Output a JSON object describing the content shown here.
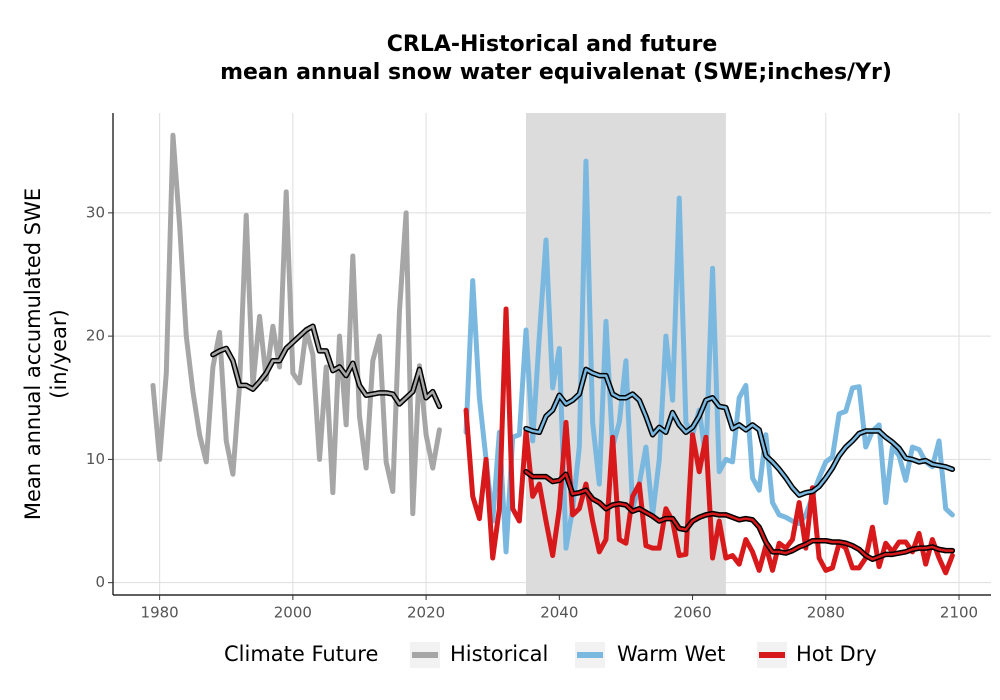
{
  "chart_data": {
    "type": "line",
    "title": [
      "CRLA-Historical and future",
      "mean annual snow water equivalenat (SWE;inches/Yr)"
    ],
    "ylabel": [
      "Mean annual accumulated SWE",
      "(in/year)"
    ],
    "legend_title": "Climate Future",
    "legend": "bottom",
    "grid": true,
    "xlim": [
      1973,
      2104.8
    ],
    "ylim": [
      -1,
      38.1
    ],
    "xticks": [
      1980,
      2000,
      2020,
      2040,
      2060,
      2080,
      2100
    ],
    "yticks": [
      0,
      10,
      20,
      30
    ],
    "shade": [
      2035,
      2065
    ],
    "shade_color": "#dcdcdc",
    "trend_color": "#000000",
    "series": [
      {
        "name": "Historical",
        "color": "#a6a6a6",
        "x": [
          1979,
          1980,
          1981,
          1982,
          1983,
          1984,
          1985,
          1986,
          1987,
          1988,
          1989,
          1990,
          1991,
          1992,
          1993,
          1994,
          1995,
          1996,
          1997,
          1998,
          1999,
          2000,
          2001,
          2002,
          2003,
          2004,
          2005,
          2006,
          2007,
          2008,
          2009,
          2010,
          2011,
          2012,
          2013,
          2014,
          2015,
          2016,
          2017,
          2018,
          2019,
          2020,
          2021,
          2022
        ],
        "values": [
          16,
          10,
          17,
          36.3,
          29,
          20,
          15.5,
          12,
          9.8,
          17.5,
          20.3,
          11.5,
          8.8,
          16,
          29.8,
          16,
          21.6,
          16.5,
          20.8,
          17.5,
          31.7,
          17,
          16.2,
          20.5,
          18.5,
          10,
          17.5,
          7.3,
          20,
          12.8,
          26.5,
          13.5,
          9.3,
          18,
          20,
          9.8,
          7.4,
          22,
          30,
          5.6,
          17.6,
          12,
          9.3,
          12.4
        ],
        "trend": {
          "x": [
            1988,
            1989,
            1990,
            1991,
            1992,
            1993,
            1994,
            1995,
            1996,
            1997,
            1998,
            1999,
            2000,
            2001,
            2002,
            2003,
            2004,
            2005,
            2006,
            2007,
            2008,
            2009,
            2010,
            2011,
            2012,
            2013,
            2014,
            2015,
            2016,
            2017,
            2018,
            2019,
            2020,
            2021,
            2022
          ],
          "values": [
            18.5,
            18.8,
            19,
            18,
            16,
            16,
            15.7,
            16.3,
            17,
            18,
            18,
            19,
            19.5,
            20,
            20.5,
            20.8,
            18.8,
            18.8,
            17.2,
            17.5,
            16.8,
            17.8,
            16,
            15.2,
            15.3,
            15.4,
            15.4,
            15.3,
            14.5,
            15,
            15.5,
            17.3,
            15,
            15.5,
            14.3
          ]
        }
      },
      {
        "name": "Warm Wet",
        "color": "#7ab8e0",
        "x": [
          2026,
          2027,
          2028,
          2029,
          2030,
          2031,
          2032,
          2033,
          2034,
          2035,
          2036,
          2037,
          2038,
          2039,
          2040,
          2041,
          2042,
          2043,
          2044,
          2045,
          2046,
          2047,
          2048,
          2049,
          2050,
          2051,
          2052,
          2053,
          2054,
          2055,
          2056,
          2057,
          2058,
          2059,
          2060,
          2061,
          2062,
          2063,
          2064,
          2065,
          2066,
          2067,
          2068,
          2069,
          2070,
          2071,
          2072,
          2073,
          2074,
          2075,
          2076,
          2077,
          2078,
          2079,
          2080,
          2081,
          2082,
          2083,
          2084,
          2085,
          2086,
          2087,
          2088,
          2089,
          2090,
          2091,
          2092,
          2093,
          2094,
          2095,
          2096,
          2097,
          2098,
          2099
        ],
        "values": [
          12.2,
          24.5,
          15,
          10,
          5,
          12.2,
          2.5,
          11.8,
          12,
          20.5,
          11.5,
          20,
          27.8,
          15.8,
          19,
          2.8,
          6,
          11,
          34.2,
          13,
          8,
          21.2,
          11,
          13,
          18,
          6,
          8,
          11,
          5.5,
          10,
          20,
          14.8,
          31.2,
          13,
          12,
          14,
          10,
          25.5,
          9,
          10,
          9.8,
          15,
          16,
          8.5,
          7.5,
          12,
          6.5,
          5.5,
          5.3,
          5,
          4.8,
          5.5,
          7,
          8.5,
          9.8,
          10.2,
          13.7,
          13.9,
          15.8,
          15.9,
          11,
          12.3,
          12.8,
          6.5,
          11,
          10.3,
          8.3,
          11,
          10.8,
          9.8,
          9.4,
          11.5,
          6,
          5.5
        ],
        "trend": {
          "x": [
            2035,
            2036,
            2037,
            2038,
            2039,
            2040,
            2041,
            2042,
            2043,
            2044,
            2045,
            2046,
            2047,
            2048,
            2049,
            2050,
            2051,
            2052,
            2053,
            2054,
            2055,
            2056,
            2057,
            2058,
            2059,
            2060,
            2061,
            2062,
            2063,
            2064,
            2065,
            2066,
            2067,
            2068,
            2069,
            2070,
            2071,
            2072,
            2073,
            2074,
            2075,
            2076,
            2077,
            2078,
            2079,
            2080,
            2081,
            2082,
            2083,
            2084,
            2085,
            2086,
            2087,
            2088,
            2089,
            2090,
            2091,
            2092,
            2093,
            2094,
            2095,
            2096,
            2097,
            2098,
            2099
          ],
          "values": [
            12.5,
            12.3,
            12.2,
            13.5,
            14,
            15.2,
            14.5,
            14.8,
            15.3,
            17.3,
            17,
            16.8,
            16.8,
            15.3,
            15,
            15,
            15.3,
            14.8,
            13.5,
            12,
            12.6,
            12.2,
            13.8,
            12.8,
            12.2,
            12.6,
            13.5,
            14.8,
            15,
            14.3,
            14.2,
            12.5,
            12.8,
            12.4,
            12.8,
            12.4,
            10.3,
            9.8,
            9.2,
            8.5,
            7.7,
            7.1,
            7.3,
            7.4,
            7.8,
            8.5,
            9.3,
            10.3,
            11,
            11.5,
            12.1,
            12.3,
            12.3,
            12.3,
            11.8,
            11.4,
            10.9,
            10.1,
            10,
            9.8,
            9.9,
            9.6,
            9.5,
            9.4,
            9.2
          ]
        }
      },
      {
        "name": "Hot Dry",
        "color": "#d7191c",
        "x": [
          2026,
          2027,
          2028,
          2029,
          2030,
          2031,
          2032,
          2033,
          2034,
          2035,
          2036,
          2037,
          2038,
          2039,
          2040,
          2041,
          2042,
          2043,
          2044,
          2045,
          2046,
          2047,
          2048,
          2049,
          2050,
          2051,
          2052,
          2053,
          2054,
          2055,
          2056,
          2057,
          2058,
          2059,
          2060,
          2061,
          2062,
          2063,
          2064,
          2065,
          2066,
          2067,
          2068,
          2069,
          2070,
          2071,
          2072,
          2073,
          2074,
          2075,
          2076,
          2077,
          2078,
          2079,
          2080,
          2081,
          2082,
          2083,
          2084,
          2085,
          2086,
          2087,
          2088,
          2089,
          2090,
          2091,
          2092,
          2093,
          2094,
          2095,
          2096,
          2097,
          2098,
          2099
        ],
        "values": [
          14,
          7,
          5.2,
          10,
          2,
          6,
          22.2,
          6,
          5,
          12.3,
          7,
          8,
          5,
          2.2,
          6,
          13,
          5.5,
          6,
          8,
          5,
          2.5,
          3.5,
          11.8,
          3.5,
          3.2,
          7,
          8,
          3,
          2.8,
          2.8,
          6,
          5,
          2.2,
          2.3,
          12,
          9,
          11.8,
          2,
          5,
          2,
          2.2,
          1.5,
          3.5,
          2.5,
          1,
          3,
          1,
          3.2,
          2.8,
          3.5,
          6.5,
          2.8,
          7.7,
          2,
          1,
          1.2,
          3.2,
          2.8,
          1.2,
          1.2,
          2,
          4.5,
          1.3,
          3.2,
          2.5,
          3.3,
          3.3,
          2.5,
          4,
          1.5,
          3.5,
          2,
          0.8,
          2.2
        ],
        "trend": {
          "x": [
            2035,
            2036,
            2037,
            2038,
            2039,
            2040,
            2041,
            2042,
            2043,
            2044,
            2045,
            2046,
            2047,
            2048,
            2049,
            2050,
            2051,
            2052,
            2053,
            2054,
            2055,
            2056,
            2057,
            2058,
            2059,
            2060,
            2061,
            2062,
            2063,
            2064,
            2065,
            2066,
            2067,
            2068,
            2069,
            2070,
            2071,
            2072,
            2073,
            2074,
            2075,
            2076,
            2077,
            2078,
            2079,
            2080,
            2081,
            2082,
            2083,
            2084,
            2085,
            2086,
            2087,
            2088,
            2089,
            2090,
            2091,
            2092,
            2093,
            2094,
            2095,
            2096,
            2097,
            2098,
            2099
          ],
          "values": [
            9,
            8.6,
            8.6,
            8.6,
            8.2,
            8.3,
            8.8,
            7.2,
            7.3,
            7.5,
            6.8,
            6.5,
            6,
            6.3,
            6.4,
            6.3,
            5.8,
            6,
            5.7,
            5.4,
            5,
            5.2,
            5.2,
            4.4,
            4.3,
            5,
            5.3,
            5.5,
            5.6,
            5.5,
            5.5,
            5.3,
            5.1,
            5.2,
            5.1,
            4.5,
            3.3,
            2.5,
            2.5,
            2.4,
            2.6,
            2.9,
            3.1,
            3.4,
            3.4,
            3.4,
            3.3,
            3.3,
            3.2,
            3,
            2.7,
            2.2,
            1.9,
            2.1,
            2.3,
            2.3,
            2.4,
            2.5,
            2.7,
            2.8,
            2.8,
            2.9,
            2.7,
            2.6,
            2.6
          ]
        }
      }
    ]
  }
}
